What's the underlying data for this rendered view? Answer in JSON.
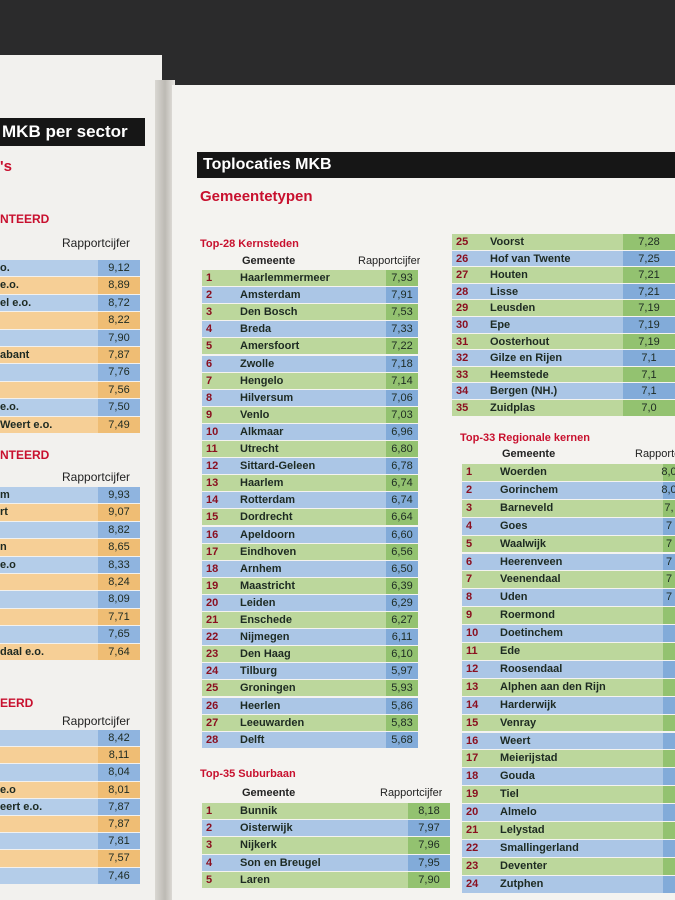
{
  "left_page": {
    "header": "MKB per sector",
    "subtitle": "'s",
    "sections": [
      {
        "title": "NTEERD",
        "column_header": "Rapportcijfer",
        "rows": [
          {
            "name": "o.",
            "value": "9,12"
          },
          {
            "name": "e.o.",
            "value": "8,89"
          },
          {
            "name": "el e.o.",
            "value": "8,72"
          },
          {
            "value": "8,22"
          },
          {
            "value": "7,90"
          },
          {
            "name": "abant",
            "value": "7,87"
          },
          {
            "value": "7,76"
          },
          {
            "value": "7,56"
          },
          {
            "name": "e.o.",
            "value": "7,50"
          },
          {
            "name": "Weert e.o.",
            "value": "7,49"
          }
        ]
      },
      {
        "title": "NTEERD",
        "column_header": "Rapportcijfer",
        "rows": [
          {
            "name": "m",
            "value": "9,93"
          },
          {
            "name": "rt",
            "value": "9,07"
          },
          {
            "value": "8,82"
          },
          {
            "name": "n",
            "value": "8,65"
          },
          {
            "name": "e.o",
            "value": "8,33"
          },
          {
            "value": "8,24"
          },
          {
            "value": "8,09"
          },
          {
            "value": "7,71"
          },
          {
            "value": "7,65"
          },
          {
            "name": "daal e.o.",
            "value": "7,64"
          }
        ]
      },
      {
        "title": "EERD",
        "column_header": "Rapportcijfer",
        "rows": [
          {
            "value": "8,42"
          },
          {
            "value": "8,11"
          },
          {
            "value": "8,04"
          },
          {
            "name": "e.o",
            "value": "8,01"
          },
          {
            "name": "eert e.o.",
            "value": "7,87"
          },
          {
            "value": "7,87"
          },
          {
            "value": "7,81"
          },
          {
            "value": "7,57"
          },
          {
            "value": "7,46"
          }
        ]
      }
    ]
  },
  "right_page": {
    "header": "Toplocaties MKB",
    "subtitle": "Gemeentetypen",
    "tables": [
      {
        "title": "Top-28 Kernsteden",
        "columns": [
          "Gemeente",
          "Rapportcijfer"
        ],
        "rows": [
          {
            "rank": 1,
            "name": "Haarlemmermeer",
            "value": "7,93"
          },
          {
            "rank": 2,
            "name": "Amsterdam",
            "value": "7,91"
          },
          {
            "rank": 3,
            "name": "Den Bosch",
            "value": "7,53"
          },
          {
            "rank": 4,
            "name": "Breda",
            "value": "7,33"
          },
          {
            "rank": 5,
            "name": "Amersfoort",
            "value": "7,22"
          },
          {
            "rank": 6,
            "name": "Zwolle",
            "value": "7,18"
          },
          {
            "rank": 7,
            "name": "Hengelo",
            "value": "7,14"
          },
          {
            "rank": 8,
            "name": "Hilversum",
            "value": "7,06"
          },
          {
            "rank": 9,
            "name": "Venlo",
            "value": "7,03"
          },
          {
            "rank": 10,
            "name": "Alkmaar",
            "value": "6,96"
          },
          {
            "rank": 11,
            "name": "Utrecht",
            "value": "6,80"
          },
          {
            "rank": 12,
            "name": "Sittard-Geleen",
            "value": "6,78"
          },
          {
            "rank": 13,
            "name": "Haarlem",
            "value": "6,74"
          },
          {
            "rank": 14,
            "name": "Rotterdam",
            "value": "6,74"
          },
          {
            "rank": 15,
            "name": "Dordrecht",
            "value": "6,64"
          },
          {
            "rank": 16,
            "name": "Apeldoorn",
            "value": "6,60"
          },
          {
            "rank": 17,
            "name": "Eindhoven",
            "value": "6,56"
          },
          {
            "rank": 18,
            "name": "Arnhem",
            "value": "6,50"
          },
          {
            "rank": 19,
            "name": "Maastricht",
            "value": "6,39"
          },
          {
            "rank": 20,
            "name": "Leiden",
            "value": "6,29"
          },
          {
            "rank": 21,
            "name": "Enschede",
            "value": "6,27"
          },
          {
            "rank": 22,
            "name": "Nijmegen",
            "value": "6,11"
          },
          {
            "rank": 23,
            "name": "Den Haag",
            "value": "6,10"
          },
          {
            "rank": 24,
            "name": "Tilburg",
            "value": "5,97"
          },
          {
            "rank": 25,
            "name": "Groningen",
            "value": "5,93"
          },
          {
            "rank": 26,
            "name": "Heerlen",
            "value": "5,86"
          },
          {
            "rank": 27,
            "name": "Leeuwarden",
            "value": "5,83"
          },
          {
            "rank": 28,
            "name": "Delft",
            "value": "5,68"
          }
        ]
      },
      {
        "title": "Top-35 Suburbaan",
        "columns": [
          "Gemeente",
          "Rapportcijfer"
        ],
        "rows": [
          {
            "rank": 1,
            "name": "Bunnik",
            "value": "8,18"
          },
          {
            "rank": 2,
            "name": "Oisterwijk",
            "value": "7,97"
          },
          {
            "rank": 3,
            "name": "Nijkerk",
            "value": "7,96"
          },
          {
            "rank": 4,
            "name": "Son en Breugel",
            "value": "7,95"
          },
          {
            "rank": 5,
            "name": "Laren",
            "value": "7,90"
          }
        ]
      },
      {
        "rows": [
          {
            "rank": 25,
            "name": "Voorst",
            "value": "7,28"
          },
          {
            "rank": 26,
            "name": "Hof van Twente",
            "value": "7,25"
          },
          {
            "rank": 27,
            "name": "Houten",
            "value": "7,21"
          },
          {
            "rank": 28,
            "name": "Lisse",
            "value": "7,21"
          },
          {
            "rank": 29,
            "name": "Leusden",
            "value": "7,19"
          },
          {
            "rank": 30,
            "name": "Epe",
            "value": "7,19"
          },
          {
            "rank": 31,
            "name": "Oosterhout",
            "value": "7,19"
          },
          {
            "rank": 32,
            "name": "Gilze en Rijen",
            "value": "7,1"
          },
          {
            "rank": 33,
            "name": "Heemstede",
            "value": "7,1"
          },
          {
            "rank": 34,
            "name": "Bergen (NH.)",
            "value": "7,1"
          },
          {
            "rank": 35,
            "name": "Zuidplas",
            "value": "7,0"
          }
        ]
      },
      {
        "title": "Top-33 Regionale kernen",
        "columns": [
          "Gemeente",
          "Rapportcijfer"
        ],
        "rows": [
          {
            "rank": 1,
            "name": "Woerden",
            "value": "8,0"
          },
          {
            "rank": 2,
            "name": "Gorinchem",
            "value": "8,0"
          },
          {
            "rank": 3,
            "name": "Barneveld",
            "value": "7,"
          },
          {
            "rank": 4,
            "name": "Goes",
            "value": "7"
          },
          {
            "rank": 5,
            "name": "Waalwijk",
            "value": "7"
          },
          {
            "rank": 6,
            "name": "Heerenveen",
            "value": "7"
          },
          {
            "rank": 7,
            "name": "Veenendaal",
            "value": "7"
          },
          {
            "rank": 8,
            "name": "Uden",
            "value": "7"
          },
          {
            "rank": 9,
            "name": "Roermond"
          },
          {
            "rank": 10,
            "name": "Doetinchem"
          },
          {
            "rank": 11,
            "name": "Ede"
          },
          {
            "rank": 12,
            "name": "Roosendaal"
          },
          {
            "rank": 13,
            "name": "Alphen aan den Rijn"
          },
          {
            "rank": 14,
            "name": "Harderwijk"
          },
          {
            "rank": 15,
            "name": "Venray"
          },
          {
            "rank": 16,
            "name": "Weert"
          },
          {
            "rank": 17,
            "name": "Meierijstad"
          },
          {
            "rank": 18,
            "name": "Gouda"
          },
          {
            "rank": 19,
            "name": "Tiel"
          },
          {
            "rank": 20,
            "name": "Almelo"
          },
          {
            "rank": 21,
            "name": "Lelystad"
          },
          {
            "rank": 22,
            "name": "Smallingerland"
          },
          {
            "rank": 23,
            "name": "Deventer"
          },
          {
            "rank": 24,
            "name": "Zutphen"
          }
        ]
      }
    ]
  }
}
